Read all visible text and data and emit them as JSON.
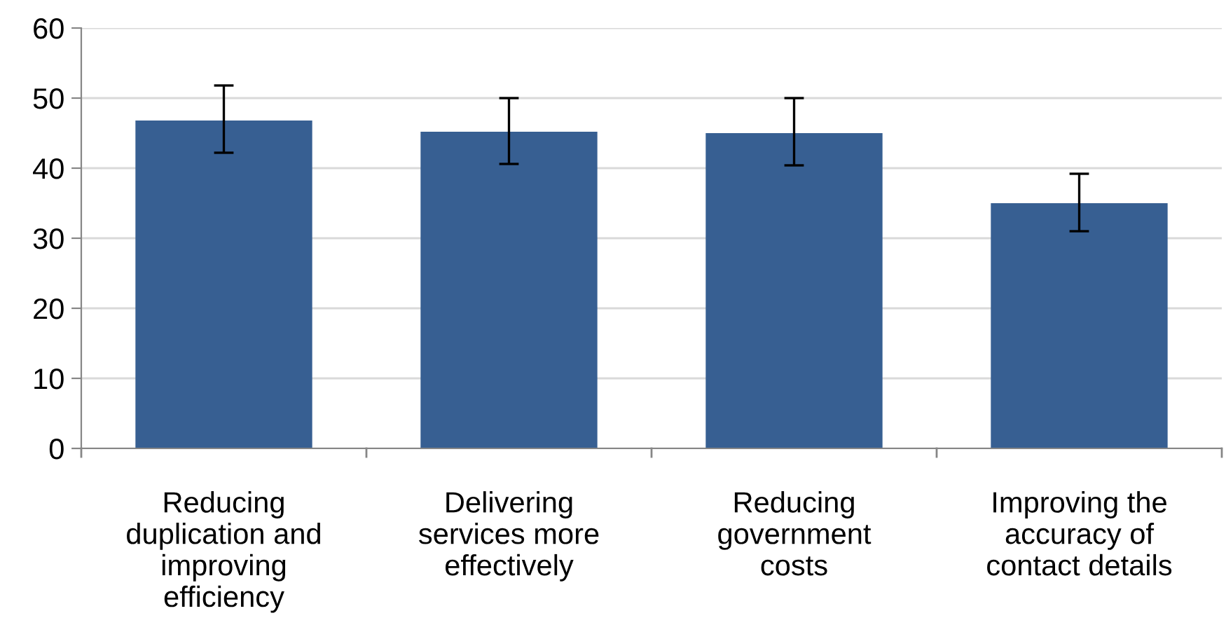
{
  "chart_data": {
    "type": "bar",
    "categories": [
      "Reducing\nduplication and\nimproving\nefficiency",
      "Delivering\nservices more\neffectively",
      "Reducing\ngovernment\ncosts",
      "Improving the\naccuracy of\ncontact details"
    ],
    "values": [
      46.8,
      45.2,
      45,
      35
    ],
    "errors": [
      [
        42.2,
        51.8
      ],
      [
        40.6,
        50
      ],
      [
        40.4,
        50
      ],
      [
        31,
        39.2
      ]
    ],
    "color": "#375f92",
    "ylim": [
      0,
      60
    ],
    "yticks": [
      0,
      10,
      20,
      30,
      40,
      50,
      60
    ],
    "grid": "y",
    "legend": false
  }
}
